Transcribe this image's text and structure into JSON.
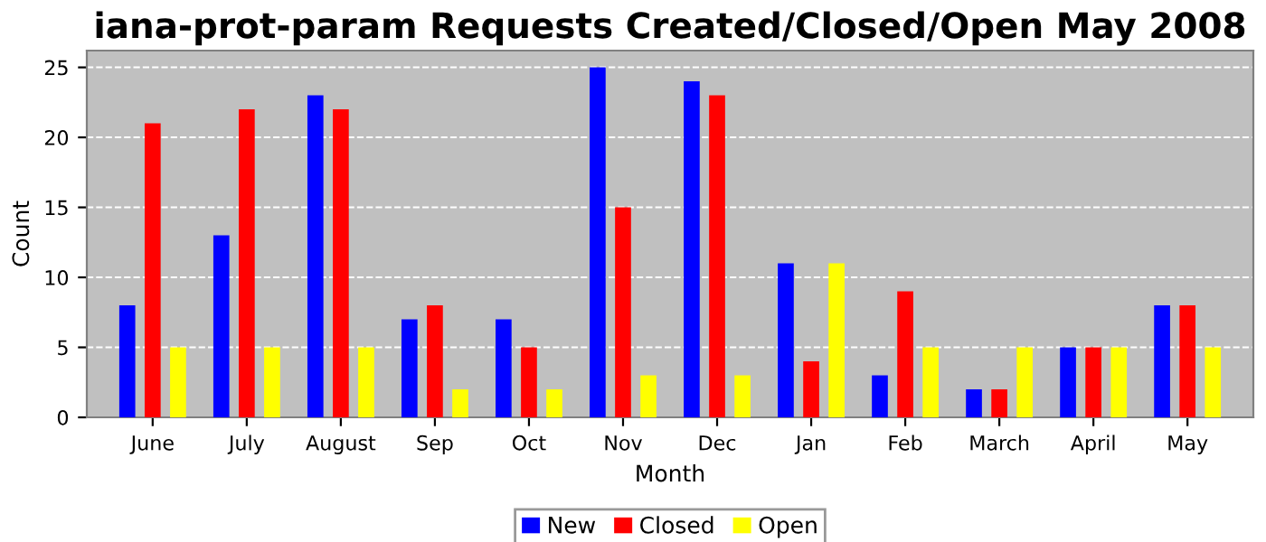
{
  "chart_data": {
    "type": "bar",
    "title": "iana-prot-param Requests Created/Closed/Open May 2008",
    "xlabel": "Month",
    "ylabel": "Count",
    "categories": [
      "June",
      "July",
      "August",
      "Sep",
      "Oct",
      "Nov",
      "Dec",
      "Jan",
      "Feb",
      "March",
      "April",
      "May"
    ],
    "series": [
      {
        "name": "New",
        "color": "#0000ff",
        "values": [
          8,
          13,
          23,
          7,
          7,
          25,
          24,
          11,
          3,
          2,
          5,
          8
        ]
      },
      {
        "name": "Closed",
        "color": "#ff0000",
        "values": [
          21,
          22,
          22,
          8,
          5,
          15,
          23,
          4,
          9,
          2,
          5,
          8
        ]
      },
      {
        "name": "Open",
        "color": "#ffff00",
        "values": [
          5,
          5,
          5,
          2,
          2,
          3,
          3,
          11,
          5,
          5,
          5,
          5
        ]
      }
    ],
    "ylim": [
      0,
      26.2
    ],
    "yticks": [
      0,
      5,
      10,
      15,
      20,
      25
    ],
    "grid": "y",
    "legend": "bottom"
  }
}
